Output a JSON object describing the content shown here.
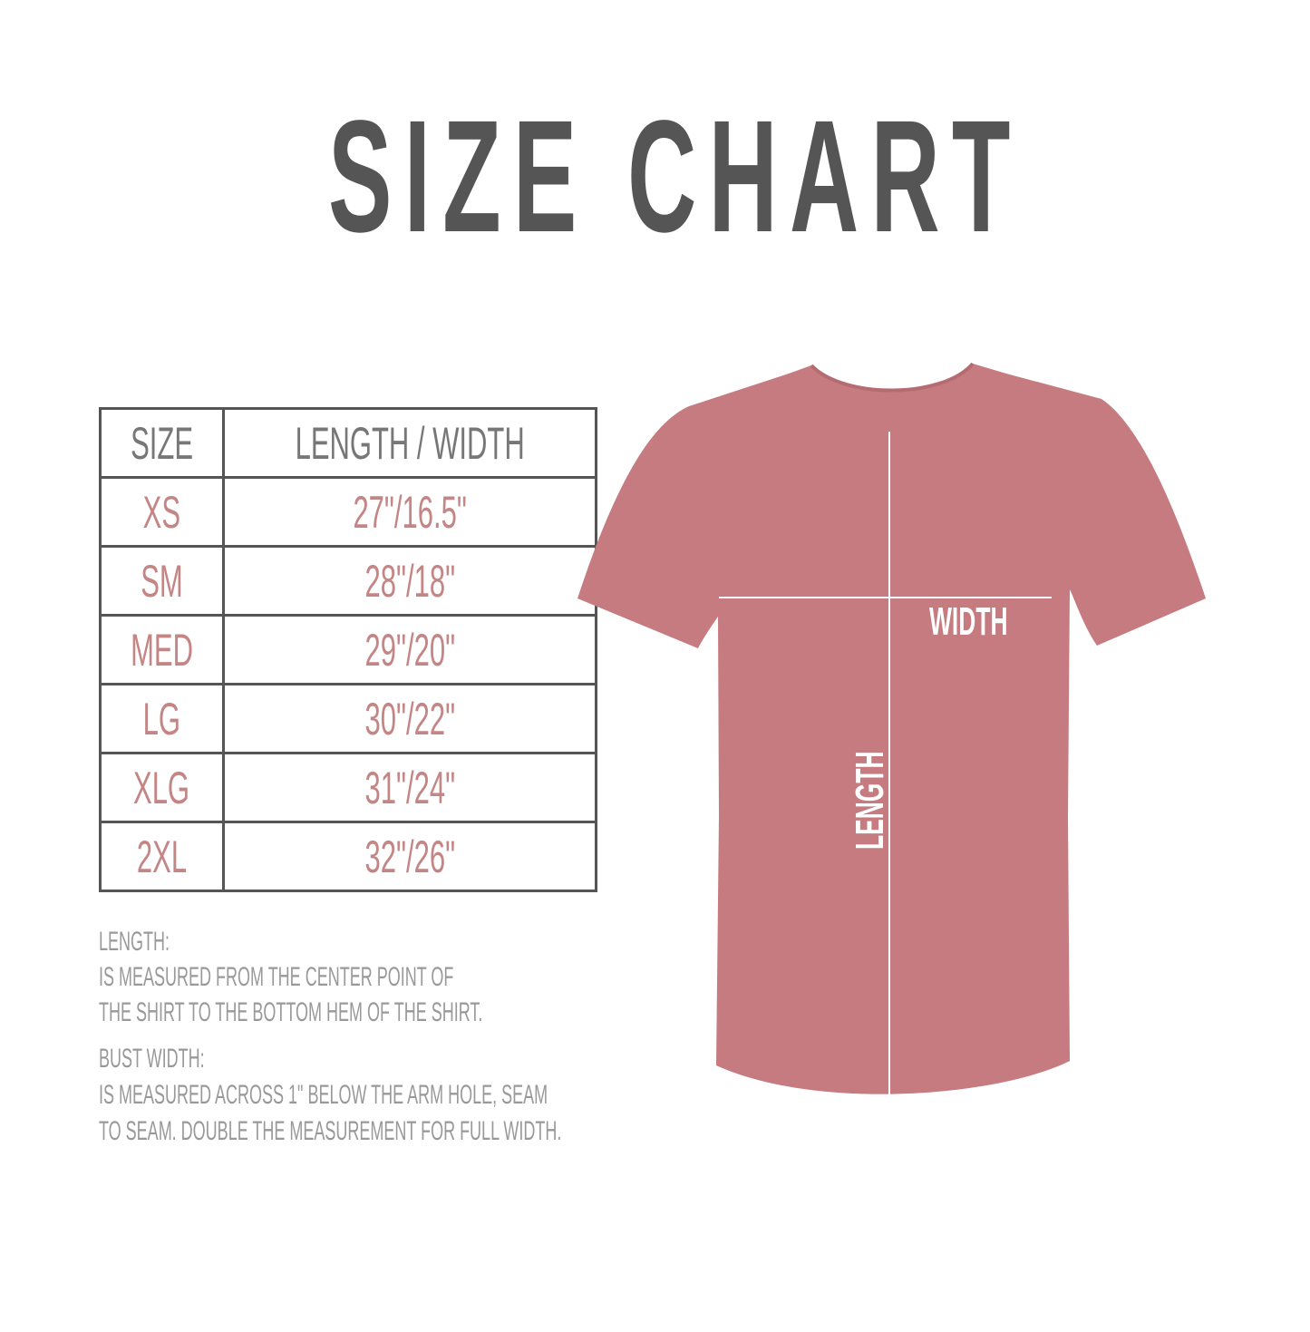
{
  "title": "SIZE CHART",
  "table": {
    "headers": [
      "SIZE",
      "LENGTH / WIDTH"
    ],
    "rows": [
      {
        "size": "XS",
        "measure": "27\"/16.5\""
      },
      {
        "size": "SM",
        "measure": "28\"/18\""
      },
      {
        "size": "MED",
        "measure": "29\"/20\""
      },
      {
        "size": "LG",
        "measure": "30\"/22\""
      },
      {
        "size": "XLG",
        "measure": "31\"/24\""
      },
      {
        "size": "2XL",
        "measure": "32\"/26\""
      }
    ]
  },
  "notes": {
    "length_heading": "LENGTH:",
    "length_lines": [
      "IS MEASURED FROM THE CENTER POINT OF",
      "THE SHIRT TO THE BOTTOM HEM OF THE SHIRT."
    ],
    "width_heading": "BUST WIDTH:",
    "width_lines": [
      "IS MEASURED ACROSS  1\" BELOW THE ARM HOLE, SEAM",
      "TO SEAM. DOUBLE THE MEASUREMENT FOR FULL WIDTH."
    ]
  },
  "diagram": {
    "width_label": "WIDTH",
    "length_label": "LENGTH"
  },
  "colors": {
    "title": "#555555",
    "values": "#c48585",
    "shirt": "#c57b7f",
    "notes": "#999999"
  }
}
